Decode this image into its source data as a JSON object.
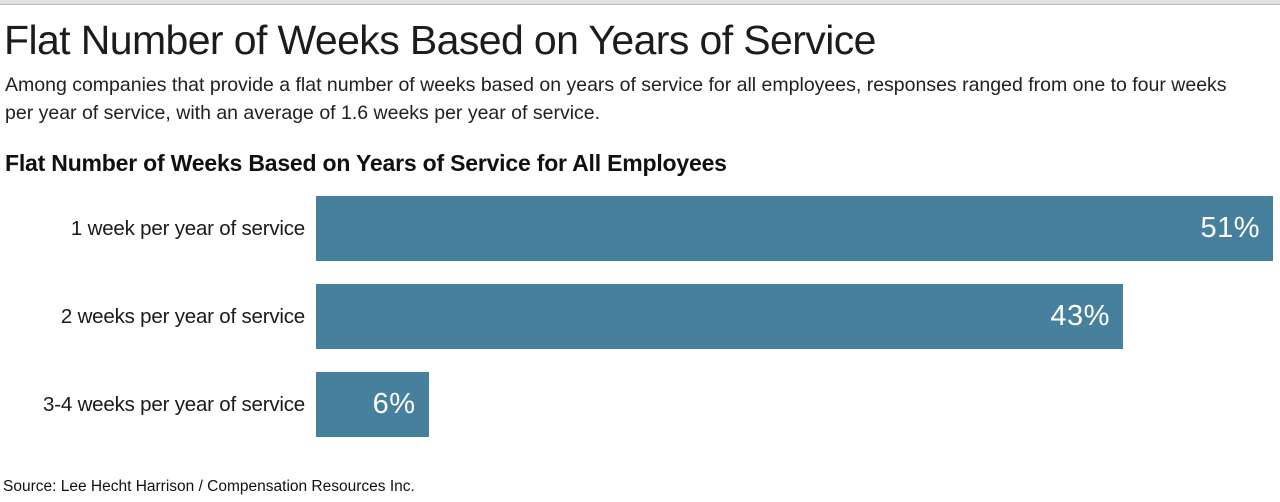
{
  "page": {
    "title": "Flat Number of Weeks Based on Years of Service",
    "subtitle": "Among companies that provide a flat number of weeks based on years of service for all employees, responses ranged from one to four weeks per year of service, with an average of 1.6 weeks per year of service.",
    "source": "Source: Lee Hecht Harrison / Compensation Resources Inc."
  },
  "chart_data": {
    "type": "bar",
    "orientation": "horizontal",
    "title": "Flat Number of Weeks Based on Years of Service for All Employees",
    "categories": [
      "1 week per year of service",
      "2 weeks per year of service",
      "3-4 weeks per year of service"
    ],
    "values": [
      51,
      43,
      6
    ],
    "value_labels": [
      "51%",
      "43%",
      "6%"
    ],
    "xlim": [
      0,
      51
    ],
    "grid": false,
    "legend": false,
    "colors": {
      "bar": "#47809d",
      "value_label": "#ffffff",
      "title_text": "#1c1c1c",
      "body_text": "#212121"
    }
  }
}
